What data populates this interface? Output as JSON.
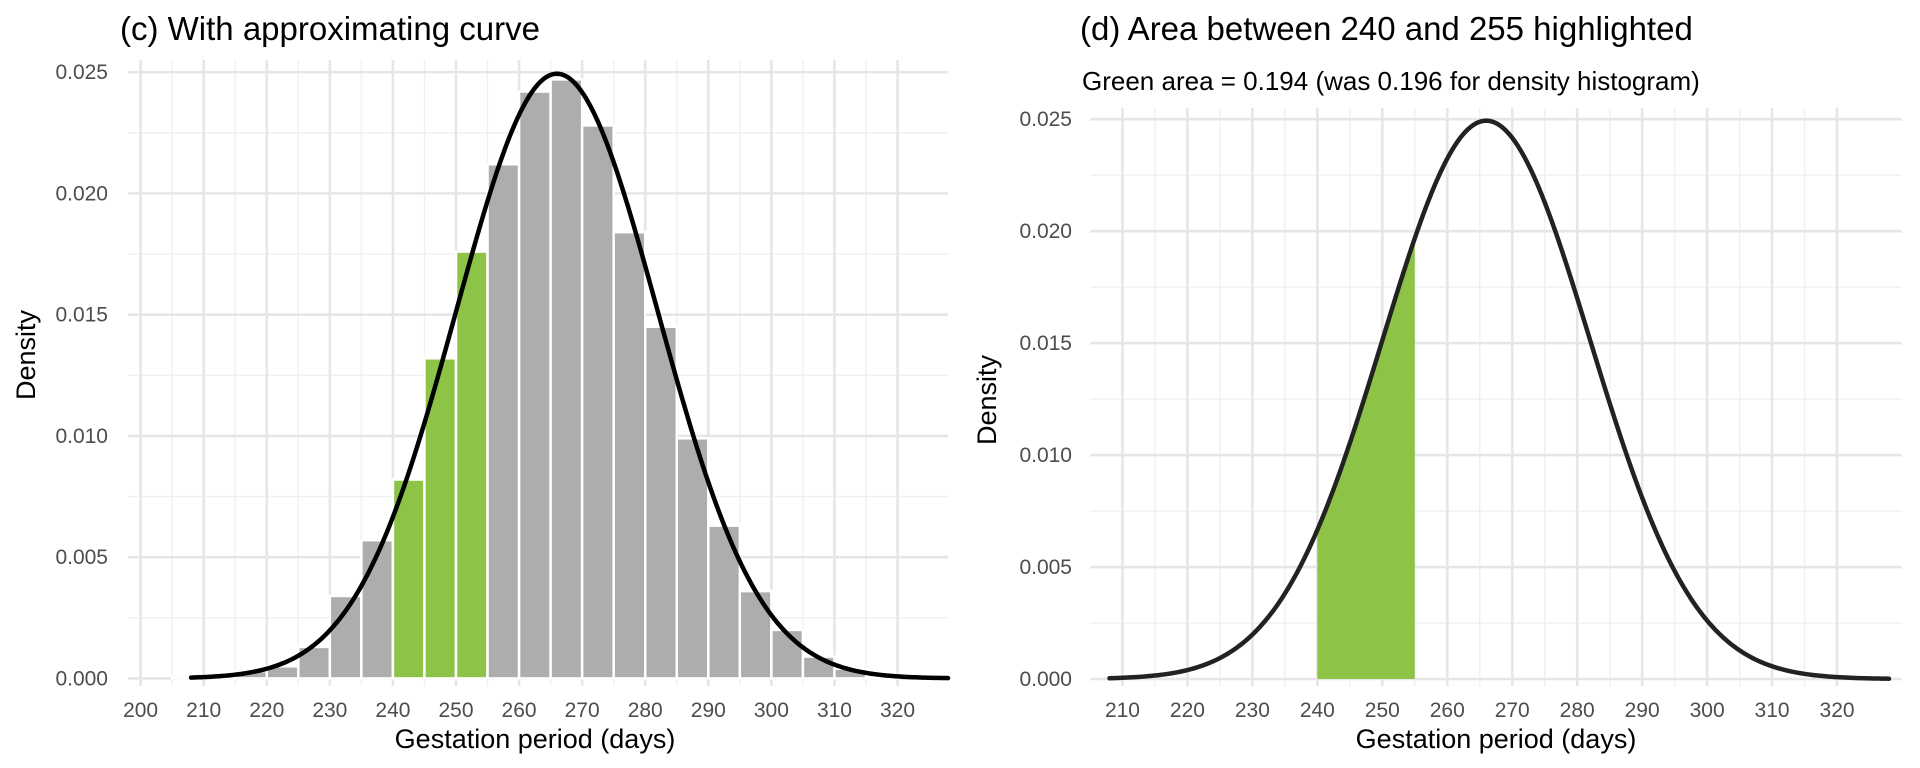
{
  "chart_data": [
    {
      "type": "bar",
      "title": "(c) With approximating curve",
      "xlabel": "Gestation period (days)",
      "ylabel": "Density",
      "xlim": [
        198,
        328
      ],
      "ylim": [
        0,
        0.025
      ],
      "x_ticks": [
        "200",
        "210",
        "220",
        "230",
        "240",
        "250",
        "260",
        "270",
        "280",
        "290",
        "300",
        "310",
        "320"
      ],
      "y_ticks": [
        "0.000",
        "0.005",
        "0.010",
        "0.015",
        "0.020",
        "0.025"
      ],
      "bin_width": 5,
      "bin_starts": [
        205,
        210,
        215,
        220,
        225,
        230,
        235,
        240,
        245,
        250,
        255,
        260,
        265,
        270,
        275,
        280,
        285,
        290,
        295,
        300,
        305,
        310,
        315
      ],
      "values": [
        0.0001,
        0.0001,
        0.0003,
        0.0005,
        0.0013,
        0.0034,
        0.0057,
        0.0082,
        0.0132,
        0.0176,
        0.0212,
        0.0242,
        0.0247,
        0.0228,
        0.0184,
        0.0145,
        0.0099,
        0.0063,
        0.0036,
        0.002,
        0.0009,
        0.0004,
        0.0001
      ],
      "highlight_range": [
        240,
        255
      ],
      "curve": {
        "type": "normal",
        "mean": 266,
        "sd": 16,
        "from": 208,
        "to": 328
      },
      "colors": {
        "bar": "#adadad",
        "highlight": "#8dc448",
        "curve": "#000000"
      }
    },
    {
      "type": "area",
      "title": "(d) Area between 240 and 255 highlighted",
      "subtitle": "Green area = 0.194 (was 0.196 for density histogram)",
      "xlabel": "Gestation period (days)",
      "ylabel": "Density",
      "xlim": [
        205,
        330
      ],
      "ylim": [
        0,
        0.025
      ],
      "x_ticks": [
        "210",
        "220",
        "230",
        "240",
        "250",
        "260",
        "270",
        "280",
        "290",
        "300",
        "310",
        "320"
      ],
      "y_ticks": [
        "0.000",
        "0.005",
        "0.010",
        "0.015",
        "0.020",
        "0.025"
      ],
      "shaded_range": [
        240,
        255
      ],
      "shaded_area": 0.194,
      "histogram_area": 0.196,
      "curve": {
        "type": "normal",
        "mean": 266,
        "sd": 16,
        "from": 208,
        "to": 328
      },
      "colors": {
        "shade": "#8dc448",
        "curve": "#222222"
      }
    }
  ]
}
